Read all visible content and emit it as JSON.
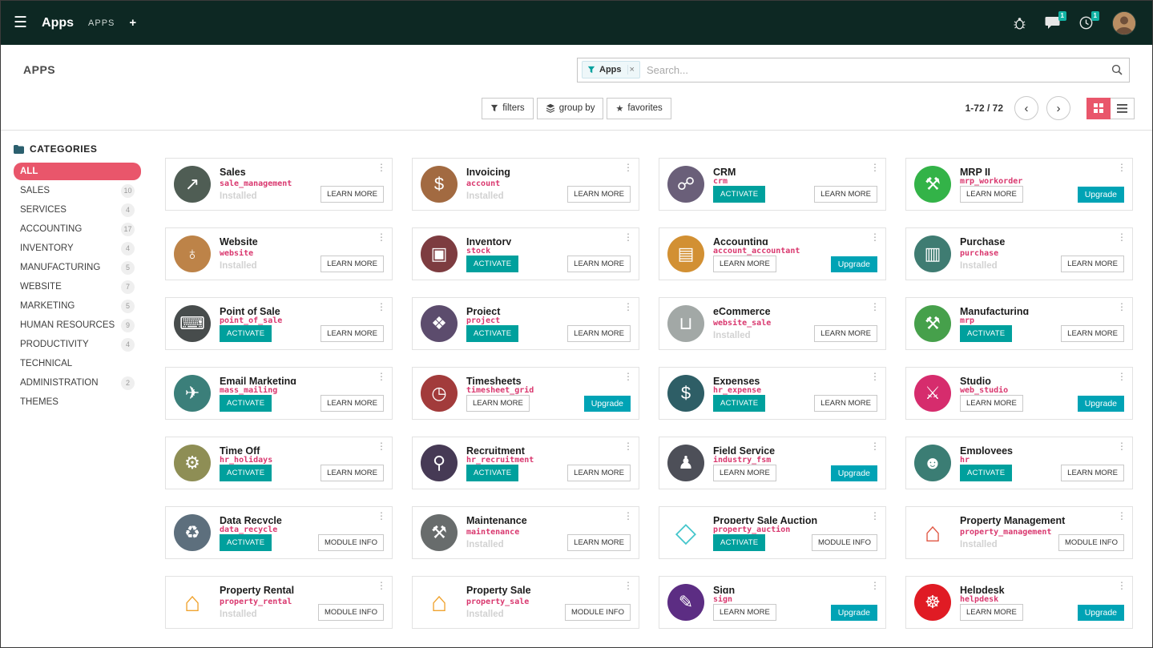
{
  "navbar": {
    "app_title": "Apps",
    "menu_item": "APPS",
    "new_label": "+",
    "chat_badge": "1",
    "activity_badge": "1"
  },
  "control_panel": {
    "page_title": "APPS",
    "facet_label": "Apps",
    "facet_remove": "×",
    "search_placeholder": "Search...",
    "filters_label": "filters",
    "group_by_label": "group by",
    "favorites_label": "favorites",
    "pager_text": "1-72 / 72",
    "prev": "‹",
    "next": "›"
  },
  "icons": {
    "hamburger": "☰",
    "star": "★",
    "kebab": "⋮"
  },
  "colors": {
    "accent": "#e9566b",
    "primary": "#00a09d",
    "upgrade": "#00a3b5",
    "module_name": "#d9376e",
    "navbar_bg": "#0d2823"
  },
  "sidebar": {
    "header": "CATEGORIES",
    "items": [
      {
        "label": "ALL",
        "count": "",
        "active": true
      },
      {
        "label": "SALES",
        "count": "10",
        "active": false
      },
      {
        "label": "SERVICES",
        "count": "4",
        "active": false
      },
      {
        "label": "ACCOUNTING",
        "count": "17",
        "active": false
      },
      {
        "label": "INVENTORY",
        "count": "4",
        "active": false
      },
      {
        "label": "MANUFACTURING",
        "count": "5",
        "active": false
      },
      {
        "label": "WEBSITE",
        "count": "7",
        "active": false
      },
      {
        "label": "MARKETING",
        "count": "5",
        "active": false
      },
      {
        "label": "HUMAN RESOURCES",
        "count": "9",
        "active": false
      },
      {
        "label": "PRODUCTIVITY",
        "count": "4",
        "active": false
      },
      {
        "label": "TECHNICAL",
        "count": "",
        "active": false
      },
      {
        "label": "ADMINISTRATION",
        "count": "2",
        "active": false
      },
      {
        "label": "THEMES",
        "count": "",
        "active": false
      }
    ]
  },
  "apps": [
    {
      "name": "Sales",
      "module": "sale_management",
      "icon": {
        "name": "sales-chart-icon",
        "glyph": "↗",
        "bg": "#4f5d54",
        "color": "#ffffff"
      },
      "left": {
        "style": "installed",
        "label": "Installed"
      },
      "right": {
        "style": "outline",
        "label": "LEARN MORE"
      }
    },
    {
      "name": "Invoicing",
      "module": "account",
      "icon": {
        "name": "invoice-dollar-icon",
        "glyph": "$",
        "bg": "#a26a41",
        "color": "#ffffff"
      },
      "left": {
        "style": "installed",
        "label": "Installed"
      },
      "right": {
        "style": "outline",
        "label": "LEARN MORE"
      }
    },
    {
      "name": "CRM",
      "module": "crm",
      "icon": {
        "name": "handshake-icon",
        "glyph": "☍",
        "bg": "#6a5f79",
        "color": "#ffffff"
      },
      "left": {
        "style": "activate",
        "label": "ACTIVATE"
      },
      "right": {
        "style": "outline",
        "label": "LEARN MORE"
      }
    },
    {
      "name": "MRP II",
      "module": "mrp_workorder",
      "icon": {
        "name": "wrench-icon",
        "glyph": "⚒",
        "bg": "#33b348",
        "color": "#ffffff"
      },
      "left": {
        "style": "learn",
        "label": "LEARN MORE"
      },
      "right": {
        "style": "upgrade",
        "label": "Upgrade"
      }
    },
    {
      "name": "Website",
      "module": "website",
      "icon": {
        "name": "globe-icon",
        "glyph": "♁",
        "bg": "#bd8348",
        "color": "#ffffff"
      },
      "left": {
        "style": "installed",
        "label": "Installed"
      },
      "right": {
        "style": "outline",
        "label": "LEARN MORE"
      }
    },
    {
      "name": "Inventory",
      "module": "stock",
      "icon": {
        "name": "box-icon",
        "glyph": "▣",
        "bg": "#7d3c40",
        "color": "#ffffff"
      },
      "left": {
        "style": "activate",
        "label": "ACTIVATE"
      },
      "right": {
        "style": "outline",
        "label": "LEARN MORE"
      }
    },
    {
      "name": "Accounting",
      "module": "account_accountant",
      "icon": {
        "name": "ledger-document-icon",
        "glyph": "▤",
        "bg": "#d29033",
        "color": "#ffffff"
      },
      "left": {
        "style": "learn",
        "label": "LEARN MORE"
      },
      "right": {
        "style": "upgrade",
        "label": "Upgrade"
      }
    },
    {
      "name": "Purchase",
      "module": "purchase",
      "icon": {
        "name": "purchase-card-icon",
        "glyph": "▥",
        "bg": "#3f7c72",
        "color": "#ffffff"
      },
      "left": {
        "style": "installed",
        "label": "Installed"
      },
      "right": {
        "style": "outline",
        "label": "LEARN MORE"
      }
    },
    {
      "name": "Point of Sale",
      "module": "point_of_sale",
      "icon": {
        "name": "cash-register-icon",
        "glyph": "⌨",
        "bg": "#474c4c",
        "color": "#ffffff"
      },
      "left": {
        "style": "activate",
        "label": "ACTIVATE"
      },
      "right": {
        "style": "outline",
        "label": "LEARN MORE"
      }
    },
    {
      "name": "Project",
      "module": "project",
      "icon": {
        "name": "puzzle-icon",
        "glyph": "❖",
        "bg": "#5c4c6d",
        "color": "#ffffff"
      },
      "left": {
        "style": "activate",
        "label": "ACTIVATE"
      },
      "right": {
        "style": "outline",
        "label": "LEARN MORE"
      }
    },
    {
      "name": "eCommerce",
      "module": "website_sale",
      "icon": {
        "name": "shopping-cart-icon",
        "glyph": "⊔",
        "bg": "#a2a8a6",
        "color": "#ffffff"
      },
      "left": {
        "style": "installed",
        "label": "Installed"
      },
      "right": {
        "style": "outline",
        "label": "LEARN MORE"
      }
    },
    {
      "name": "Manufacturing",
      "module": "mrp",
      "icon": {
        "name": "wrench-icon",
        "glyph": "⚒",
        "bg": "#46a04b",
        "color": "#ffffff"
      },
      "left": {
        "style": "activate",
        "label": "ACTIVATE"
      },
      "right": {
        "style": "outline",
        "label": "LEARN MORE"
      }
    },
    {
      "name": "Email Marketing",
      "module": "mass_mailing",
      "icon": {
        "name": "paper-plane-icon",
        "glyph": "✈",
        "bg": "#3b7f7a",
        "color": "#ffffff"
      },
      "left": {
        "style": "activate",
        "label": "ACTIVATE"
      },
      "right": {
        "style": "outline",
        "label": "LEARN MORE"
      }
    },
    {
      "name": "Timesheets",
      "module": "timesheet_grid",
      "icon": {
        "name": "stopwatch-icon",
        "glyph": "◷",
        "bg": "#a23b3b",
        "color": "#ffffff"
      },
      "left": {
        "style": "learn",
        "label": "LEARN MORE"
      },
      "right": {
        "style": "upgrade",
        "label": "Upgrade"
      }
    },
    {
      "name": "Expenses",
      "module": "hr_expense",
      "icon": {
        "name": "expense-dollar-icon",
        "glyph": "$",
        "bg": "#2e5e66",
        "color": "#ffffff"
      },
      "left": {
        "style": "activate",
        "label": "ACTIVATE"
      },
      "right": {
        "style": "outline",
        "label": "LEARN MORE"
      }
    },
    {
      "name": "Studio",
      "module": "web_studio",
      "icon": {
        "name": "crossed-tools-icon",
        "glyph": "⚔",
        "bg": "#d62c6d",
        "color": "#ffffff"
      },
      "left": {
        "style": "learn",
        "label": "LEARN MORE"
      },
      "right": {
        "style": "upgrade",
        "label": "Upgrade"
      }
    },
    {
      "name": "Time Off",
      "module": "hr_holidays",
      "icon": {
        "name": "gear-person-icon",
        "glyph": "⚙",
        "bg": "#8e8e55",
        "color": "#ffffff"
      },
      "left": {
        "style": "activate",
        "label": "ACTIVATE"
      },
      "right": {
        "style": "outline",
        "label": "LEARN MORE"
      }
    },
    {
      "name": "Recruitment",
      "module": "hr_recruitment",
      "icon": {
        "name": "magnifier-person-icon",
        "glyph": "⚲",
        "bg": "#463a55",
        "color": "#ffffff"
      },
      "left": {
        "style": "activate",
        "label": "ACTIVATE"
      },
      "right": {
        "style": "outline",
        "label": "LEARN MORE"
      }
    },
    {
      "name": "Field Service",
      "module": "industry_fsm",
      "icon": {
        "name": "field-worker-icon",
        "glyph": "♟",
        "bg": "#4d4f58",
        "color": "#ffffff"
      },
      "left": {
        "style": "learn",
        "label": "LEARN MORE"
      },
      "right": {
        "style": "upgrade",
        "label": "Upgrade"
      }
    },
    {
      "name": "Employees",
      "module": "hr",
      "icon": {
        "name": "people-icon",
        "glyph": "☻",
        "bg": "#3b7d74",
        "color": "#ffffff"
      },
      "left": {
        "style": "activate",
        "label": "ACTIVATE"
      },
      "right": {
        "style": "outline",
        "label": "LEARN MORE"
      }
    },
    {
      "name": "Data Recycle",
      "module": "data_recycle",
      "icon": {
        "name": "broom-recycle-icon",
        "glyph": "♻",
        "bg": "#5d6f7d",
        "color": "#ffffff"
      },
      "left": {
        "style": "activate",
        "label": "ACTIVATE"
      },
      "right": {
        "style": "outline",
        "label": "MODULE INFO"
      }
    },
    {
      "name": "Maintenance",
      "module": "maintenance",
      "icon": {
        "name": "hammer-icon",
        "glyph": "⚒",
        "bg": "#686c6c",
        "color": "#ffffff"
      },
      "left": {
        "style": "installed",
        "label": "Installed"
      },
      "right": {
        "style": "outline",
        "label": "LEARN MORE"
      }
    },
    {
      "name": "Property Sale Auction",
      "module": "property_auction",
      "icon": {
        "name": "cube-icon",
        "glyph": "◇",
        "bg": "none",
        "color": "#45c6cc"
      },
      "left": {
        "style": "activate",
        "label": "ACTIVATE"
      },
      "right": {
        "style": "outline",
        "label": "MODULE INFO"
      }
    },
    {
      "name": "Property Management",
      "module": "property_management",
      "icon": {
        "name": "house-hand-icon",
        "glyph": "⌂",
        "bg": "none",
        "color": "#e05744"
      },
      "left": {
        "style": "installed",
        "label": "Installed"
      },
      "right": {
        "style": "outline",
        "label": "MODULE INFO"
      }
    },
    {
      "name": "Property Rental",
      "module": "property_rental",
      "icon": {
        "name": "house-percent-icon",
        "glyph": "⌂",
        "bg": "none",
        "color": "#f0a431"
      },
      "left": {
        "style": "installed",
        "label": "Installed"
      },
      "right": {
        "style": "outline",
        "label": "MODULE INFO"
      }
    },
    {
      "name": "Property Sale",
      "module": "property_sale",
      "icon": {
        "name": "house-percent-icon",
        "glyph": "⌂",
        "bg": "none",
        "color": "#f0a431"
      },
      "left": {
        "style": "installed",
        "label": "Installed"
      },
      "right": {
        "style": "outline",
        "label": "MODULE INFO"
      }
    },
    {
      "name": "Sign",
      "module": "sign",
      "icon": {
        "name": "pen-document-icon",
        "glyph": "✎",
        "bg": "#5c2d83",
        "color": "#ffffff"
      },
      "left": {
        "style": "learn",
        "label": "LEARN MORE"
      },
      "right": {
        "style": "upgrade",
        "label": "Upgrade"
      }
    },
    {
      "name": "Helpdesk",
      "module": "helpdesk",
      "icon": {
        "name": "lifebuoy-icon",
        "glyph": "☸",
        "bg": "#e01b24",
        "color": "#ffffff"
      },
      "left": {
        "style": "learn",
        "label": "LEARN MORE"
      },
      "right": {
        "style": "upgrade",
        "label": "Upgrade"
      }
    }
  ]
}
